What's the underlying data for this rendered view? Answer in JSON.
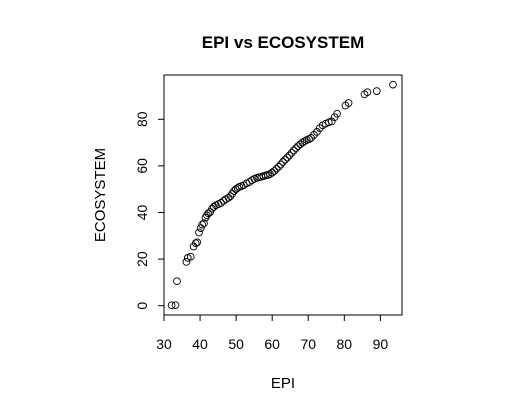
{
  "chart_data": {
    "type": "scatter",
    "title": "EPI vs ECOSYSTEM",
    "xlabel": "EPI",
    "ylabel": "ECOSYSTEM",
    "xlim": [
      30,
      96
    ],
    "ylim": [
      -4,
      99
    ],
    "xticks": [
      30,
      40,
      50,
      60,
      70,
      80,
      90
    ],
    "yticks": [
      0,
      20,
      40,
      60,
      80
    ],
    "grid": false,
    "legend": "none",
    "marker": "open-circle",
    "x": [
      32.1,
      33.2,
      33.6,
      36.2,
      36.6,
      37.4,
      38.2,
      38.8,
      39.2,
      39.7,
      40.2,
      40.6,
      41.1,
      41.5,
      41.9,
      42.3,
      42.8,
      43.3,
      43.8,
      44.4,
      45.1,
      45.8,
      46.5,
      47.2,
      47.9,
      48.4,
      48.9,
      49.4,
      49.9,
      50.4,
      50.9,
      51.5,
      52.1,
      52.9,
      53.7,
      54.4,
      55.1,
      55.8,
      56.4,
      57.0,
      57.6,
      58.2,
      58.8,
      59.4,
      60.0,
      60.6,
      61.2,
      61.8,
      62.4,
      63.0,
      63.6,
      64.2,
      64.8,
      65.4,
      66.0,
      66.6,
      67.2,
      67.8,
      68.4,
      69.0,
      69.6,
      70.2,
      70.8,
      71.6,
      72.4,
      73.2,
      74.0,
      74.8,
      75.7,
      76.5,
      77.3,
      78.0,
      80.3,
      81.2,
      85.6,
      86.4,
      89.0,
      93.5
    ],
    "y": [
      0.2,
      0.2,
      10.5,
      18.8,
      20.5,
      21.0,
      25.4,
      26.8,
      27.2,
      31.4,
      33.3,
      34.8,
      35.4,
      37.8,
      38.8,
      39.6,
      40.2,
      41.6,
      42.4,
      43.1,
      43.6,
      44.1,
      45.0,
      45.7,
      46.3,
      47.0,
      48.0,
      49.2,
      50.0,
      50.5,
      51.0,
      51.3,
      51.7,
      52.5,
      53.1,
      53.9,
      54.4,
      54.9,
      55.1,
      55.3,
      55.6,
      55.9,
      56.1,
      56.5,
      57.1,
      57.8,
      58.8,
      59.6,
      60.6,
      61.7,
      62.7,
      63.6,
      64.5,
      65.6,
      66.6,
      67.6,
      68.5,
      69.3,
      70.0,
      70.6,
      71.1,
      71.5,
      72.0,
      73.3,
      74.6,
      76.2,
      77.4,
      78.1,
      78.7,
      79.1,
      80.9,
      82.4,
      85.9,
      87.0,
      90.7,
      91.6,
      92.1,
      94.9
    ]
  }
}
